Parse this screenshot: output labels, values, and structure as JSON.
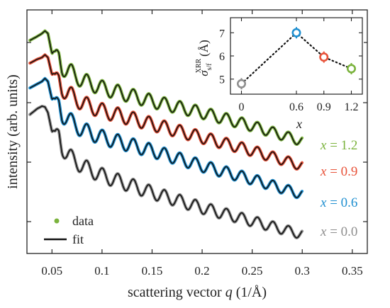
{
  "chart_data": [
    {
      "type": "line",
      "xlabel": "scattering vector",
      "xlabel_var": "q",
      "xlabel_unit": "(1/Å)",
      "ylabel": "intensity (arb. units)",
      "xlim": [
        0.025,
        0.365
      ],
      "x_ticks": [
        0.05,
        0.1,
        0.15,
        0.2,
        0.25,
        0.3,
        0.35
      ],
      "x_tick_labels": [
        "0.05",
        "0.1",
        "0.15",
        "0.2",
        "0.25",
        "0.3",
        "0.35"
      ],
      "y_ticks_labeled": false,
      "legend": {
        "position": "bottom-left",
        "data_label": "data",
        "fit_label": "fit"
      },
      "series": [
        {
          "var": "x",
          "eq": " = ",
          "value": "1.2",
          "color": "#7bb33d",
          "x": [
            0.028,
            0.035,
            0.04,
            0.043,
            0.046,
            0.05,
            0.053,
            0.057,
            0.06,
            0.065,
            0.07,
            0.08,
            0.1,
            0.15,
            0.2,
            0.25,
            0.3
          ],
          "y": [
            6.8,
            6.9,
            6.98,
            7.05,
            6.98,
            6.45,
            6.3,
            6.4,
            6.1,
            6.0,
            5.95,
            5.75,
            5.55,
            5.2,
            4.9,
            4.55,
            4.15
          ]
        },
        {
          "var": "x",
          "eq": " = ",
          "value": "0.9",
          "color": "#e8533a",
          "x": [
            0.028,
            0.035,
            0.04,
            0.043,
            0.046,
            0.05,
            0.053,
            0.057,
            0.06,
            0.065,
            0.07,
            0.08,
            0.1,
            0.15,
            0.2,
            0.25,
            0.3
          ],
          "y": [
            6.2,
            6.3,
            6.35,
            6.42,
            6.35,
            5.9,
            5.7,
            5.8,
            5.55,
            5.4,
            5.35,
            5.15,
            4.95,
            4.6,
            4.25,
            3.9,
            3.5
          ]
        },
        {
          "var": "x",
          "eq": " = ",
          "value": "0.6",
          "color": "#1f8fd0",
          "x": [
            0.028,
            0.035,
            0.04,
            0.043,
            0.046,
            0.05,
            0.053,
            0.057,
            0.06,
            0.065,
            0.07,
            0.08,
            0.1,
            0.15,
            0.2,
            0.25,
            0.3
          ],
          "y": [
            5.55,
            5.65,
            5.72,
            5.8,
            5.72,
            5.25,
            5.05,
            5.15,
            4.85,
            4.75,
            4.65,
            4.45,
            4.25,
            3.9,
            3.5,
            3.15,
            2.75
          ]
        },
        {
          "var": "x",
          "eq": " = ",
          "value": "0.0",
          "color": "#8e8e8e",
          "x": [
            0.028,
            0.035,
            0.04,
            0.043,
            0.046,
            0.05,
            0.053,
            0.057,
            0.06,
            0.065,
            0.07,
            0.08,
            0.1,
            0.15,
            0.2,
            0.25,
            0.3
          ],
          "y": [
            4.85,
            5.0,
            5.07,
            5.05,
            4.9,
            4.4,
            4.2,
            4.35,
            4.0,
            3.8,
            3.7,
            3.5,
            3.25,
            2.8,
            2.4,
            2.05,
            1.7
          ]
        }
      ]
    },
    {
      "type": "scatter",
      "ylabel": "σ",
      "ylabel_sub": "s/f",
      "ylabel_sup": "XRR",
      "ylabel_unit": "(Å)",
      "xlabel": "x",
      "x_ticks": [
        0,
        0.6,
        0.9,
        1.2
      ],
      "x_tick_labels": [
        "0",
        "0.6",
        "0.9",
        "1.2"
      ],
      "y_ticks": [
        5,
        6,
        7
      ],
      "y_tick_labels": [
        "5",
        "6",
        "7"
      ],
      "xlim": [
        -0.12,
        1.32
      ],
      "ylim": [
        4.35,
        7.65
      ],
      "x": [
        0,
        0.6,
        0.9,
        1.2
      ],
      "y": [
        4.8,
        7.0,
        5.95,
        5.45
      ],
      "colors": [
        "#8e8e8e",
        "#1f8fd0",
        "#e8533a",
        "#7bb33d"
      ],
      "connector": "dotted"
    }
  ]
}
